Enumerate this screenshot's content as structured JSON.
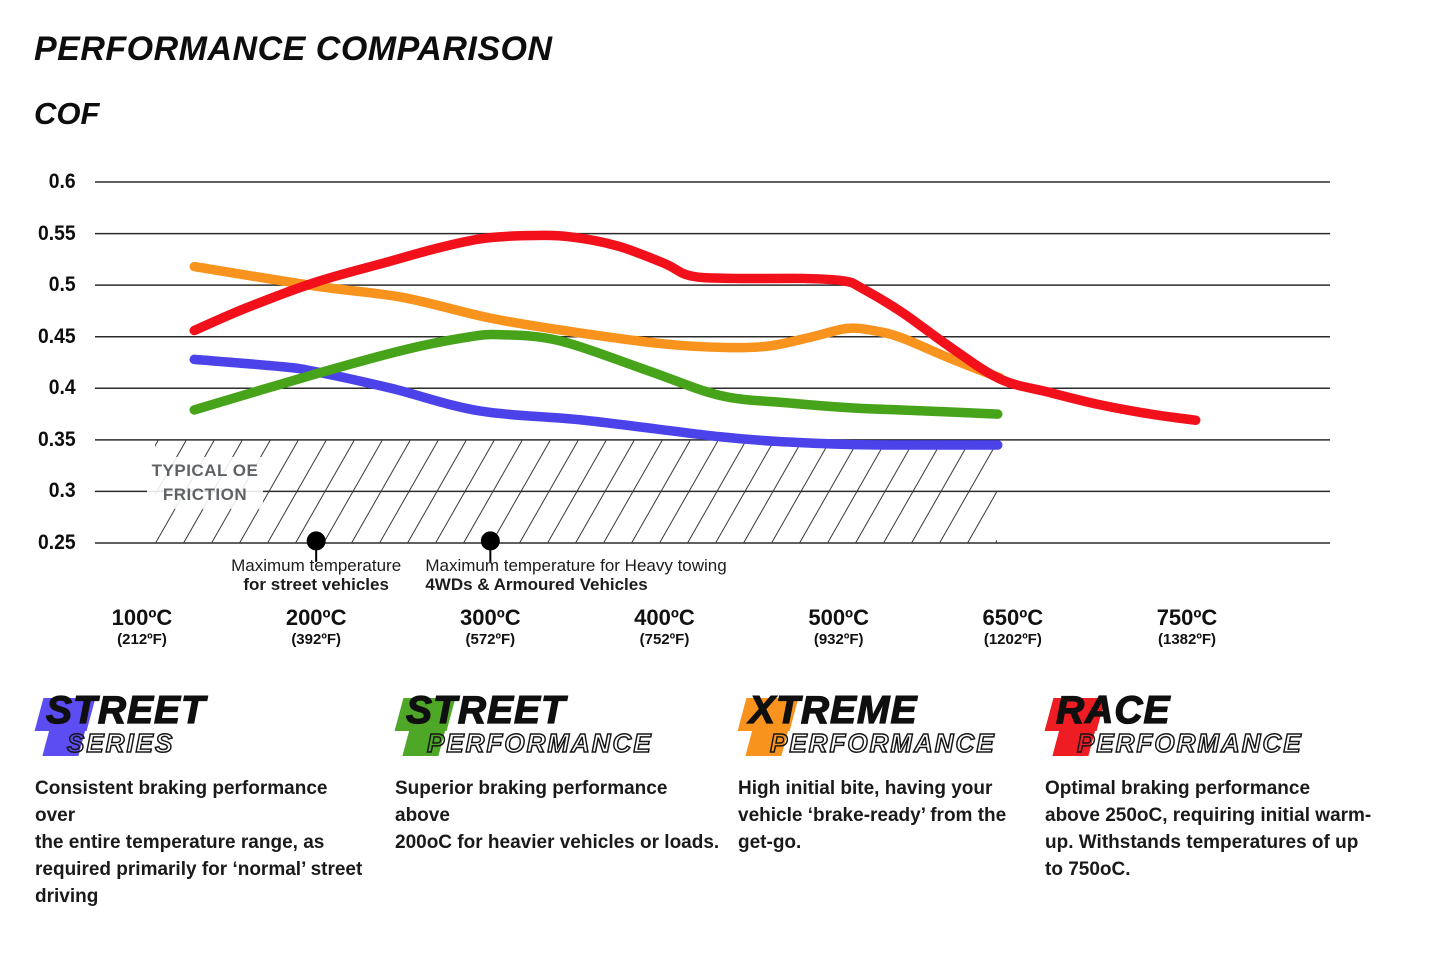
{
  "title": "PERFORMANCE COMPARISON",
  "y_axis_title": "COF",
  "oe_zone": {
    "line1": "TYPICAL OE",
    "line2": "FRICTION"
  },
  "annotations": {
    "street": {
      "line1": "Maximum temperature",
      "line2": "for street vehicles",
      "temp_c": 200
    },
    "towing": {
      "line1": "Maximum temperature for Heavy towing",
      "line2": "4WDs & Armoured Vehicles",
      "temp_c": 300
    }
  },
  "chart_data": {
    "type": "line",
    "title": "PERFORMANCE COMPARISON",
    "ylabel": "COF",
    "ylim": [
      0.25,
      0.6
    ],
    "grid": true,
    "legend_position": "bottom",
    "y_ticks": [
      "0.6",
      "0.55",
      "0.5",
      "0.45",
      "0.4",
      "0.35",
      "0.3",
      "0.25"
    ],
    "y_tick_values": [
      0.6,
      0.55,
      0.5,
      0.45,
      0.4,
      0.35,
      0.3,
      0.25
    ],
    "x_ticks": [
      {
        "t": 100,
        "c": "100ºC",
        "f": "(212ºF)"
      },
      {
        "t": 200,
        "c": "200ºC",
        "f": "(392ºF)"
      },
      {
        "t": 300,
        "c": "300ºC",
        "f": "(572ºF)"
      },
      {
        "t": 400,
        "c": "400ºC",
        "f": "(752ºF)"
      },
      {
        "t": 500,
        "c": "500ºC",
        "f": "(932ºF)"
      },
      {
        "t": 650,
        "c": "650ºC",
        "f": "(1202ºF)"
      },
      {
        "t": 750,
        "c": "750ºC",
        "f": "(1382ºF)"
      }
    ],
    "oe_band": {
      "label": "TYPICAL OE FRICTION",
      "cof_from": 0.25,
      "cof_to": 0.35,
      "temp_from_c": 107,
      "temp_to_c": 641
    },
    "markers": [
      {
        "temp_c": 200,
        "note": "Maximum temperature for street vehicles"
      },
      {
        "temp_c": 300,
        "note": "Maximum temperature for Heavy towing 4WDs & Armoured Vehicles"
      }
    ],
    "series": [
      {
        "name": "Street Series",
        "color": "#4b42e9",
        "points": [
          [
            130,
            0.428
          ],
          [
            180,
            0.421
          ],
          [
            200,
            0.416
          ],
          [
            243,
            0.4
          ],
          [
            294,
            0.378
          ],
          [
            354,
            0.369
          ],
          [
            432,
            0.353
          ],
          [
            470,
            0.348
          ],
          [
            510,
            0.3455
          ],
          [
            560,
            0.345
          ],
          [
            637,
            0.345
          ]
        ]
      },
      {
        "name": "Street Performance",
        "color": "#46a31a",
        "points": [
          [
            130,
            0.379
          ],
          [
            200,
            0.414
          ],
          [
            250,
            0.437
          ],
          [
            285,
            0.449
          ],
          [
            305,
            0.452
          ],
          [
            340,
            0.446
          ],
          [
            389,
            0.418
          ],
          [
            432,
            0.393
          ],
          [
            470,
            0.386
          ],
          [
            511,
            0.381
          ],
          [
            554,
            0.379
          ],
          [
            596,
            0.377
          ],
          [
            637,
            0.375
          ]
        ]
      },
      {
        "name": "Xtreme Performance",
        "color": "#f8941d",
        "points": [
          [
            130,
            0.518
          ],
          [
            200,
            0.499
          ],
          [
            250,
            0.488
          ],
          [
            300,
            0.468
          ],
          [
            350,
            0.454
          ],
          [
            400,
            0.443
          ],
          [
            435,
            0.4395
          ],
          [
            460,
            0.441
          ],
          [
            485,
            0.45
          ],
          [
            507,
            0.458
          ],
          [
            530,
            0.456
          ],
          [
            554,
            0.449
          ],
          [
            596,
            0.429
          ],
          [
            639,
            0.41
          ]
        ]
      },
      {
        "name": "Race Performance",
        "color": "#f2101b",
        "points": [
          [
            130,
            0.456
          ],
          [
            160,
            0.478
          ],
          [
            200,
            0.503
          ],
          [
            240,
            0.522
          ],
          [
            270,
            0.536
          ],
          [
            295,
            0.545
          ],
          [
            320,
            0.548
          ],
          [
            345,
            0.547
          ],
          [
            373,
            0.538
          ],
          [
            400,
            0.521
          ],
          [
            415,
            0.509
          ],
          [
            440,
            0.5065
          ],
          [
            480,
            0.5065
          ],
          [
            505,
            0.504
          ],
          [
            520,
            0.497
          ],
          [
            554,
            0.474
          ],
          [
            596,
            0.44
          ],
          [
            639,
            0.409
          ],
          [
            671,
            0.396
          ],
          [
            700,
            0.384
          ],
          [
            729,
            0.375
          ],
          [
            755,
            0.369
          ]
        ]
      }
    ]
  },
  "legend": {
    "items": [
      {
        "word1": "STREET",
        "word2": "SERIES",
        "color": "#5b4df1",
        "desc": "Consistent braking performance over\nthe entire temperature range, as\nrequired primarily for ‘normal’ street\ndriving"
      },
      {
        "word1": "STREET",
        "word2": "PERFORMANCE",
        "color": "#4fa727",
        "desc": "Superior braking performance above\n200oC for heavier vehicles or loads."
      },
      {
        "word1": "XTREME",
        "word2": "PERFORMANCE",
        "color": "#f8941d",
        "desc": "High initial bite, having your\nvehicle ‘brake-ready’ from the\nget-go."
      },
      {
        "word1": "RACE",
        "word2": "PERFORMANCE",
        "color": "#ee1c23",
        "desc": "Optimal braking performance\nabove 250oC, requiring initial warm-\nup. Withstands temperatures of up\nto 750oC."
      }
    ]
  }
}
